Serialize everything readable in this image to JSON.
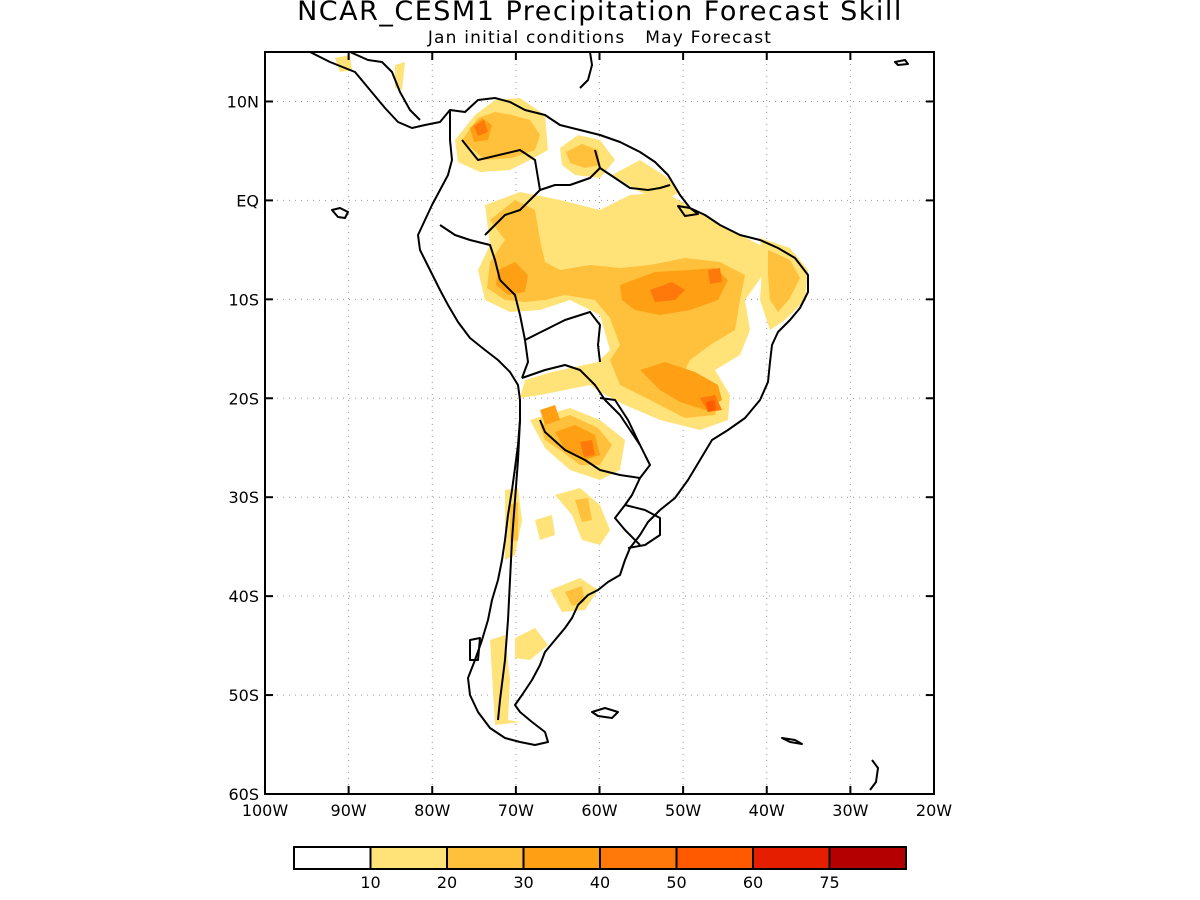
{
  "title": "NCAR_CESM1 Precipitation Forecast Skill",
  "subtitle": "Jan initial conditions   May Forecast",
  "map": {
    "lon_range": [
      -100,
      -20
    ],
    "lat_range": [
      -60,
      15
    ],
    "lon_ticks": [
      "100W",
      "90W",
      "80W",
      "70W",
      "60W",
      "50W",
      "40W",
      "30W",
      "20W"
    ],
    "lat_ticks": [
      "10N",
      "EQ",
      "10S",
      "20S",
      "30S",
      "40S",
      "50S",
      "60S"
    ],
    "lat_values": [
      10,
      0,
      -10,
      -20,
      -30,
      -40,
      -50,
      -60
    ],
    "grid": true,
    "gridline_style": "dotted"
  },
  "colorbar": {
    "colors": [
      "#ffffff",
      "#ffe278",
      "#ffc13c",
      "#ffa014",
      "#ff780a",
      "#ff5a00",
      "#e61e00",
      "#b40000"
    ],
    "labels": [
      "10",
      "20",
      "30",
      "40",
      "50",
      "60",
      "75"
    ]
  }
}
